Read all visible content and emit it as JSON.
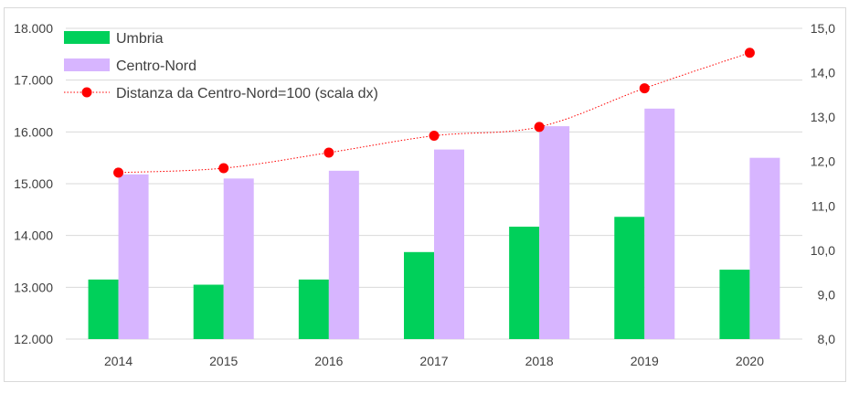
{
  "chart_data": {
    "type": "bar",
    "categories": [
      "2014",
      "2015",
      "2016",
      "2017",
      "2018",
      "2019",
      "2020"
    ],
    "series": [
      {
        "name": "Umbria",
        "type": "bar",
        "axis": "left",
        "color": "#00d05a",
        "values": [
          13150,
          13050,
          13150,
          13680,
          14170,
          14360,
          13340
        ]
      },
      {
        "name": "Centro-Nord",
        "type": "bar",
        "axis": "left",
        "color": "#d7b5ff",
        "values": [
          15180,
          15100,
          15250,
          15660,
          16110,
          16450,
          15500
        ]
      },
      {
        "name": "Distanza da Centro-Nord=100 (scala dx)",
        "type": "line",
        "axis": "right",
        "color": "#ff0000",
        "values": [
          11.75,
          11.85,
          12.2,
          12.58,
          12.78,
          13.65,
          14.45
        ]
      }
    ],
    "left_axis": {
      "min": 12000,
      "max": 18000,
      "ticks": [
        "12.000",
        "13.000",
        "14.000",
        "15.000",
        "16.000",
        "17.000",
        "18.000"
      ]
    },
    "right_axis": {
      "min": 8.0,
      "max": 15.0,
      "ticks": [
        "8,0",
        "9,0",
        "10,0",
        "11,0",
        "12,0",
        "13,0",
        "14,0",
        "15,0"
      ]
    },
    "legend_position": "top-left",
    "grid": true
  }
}
